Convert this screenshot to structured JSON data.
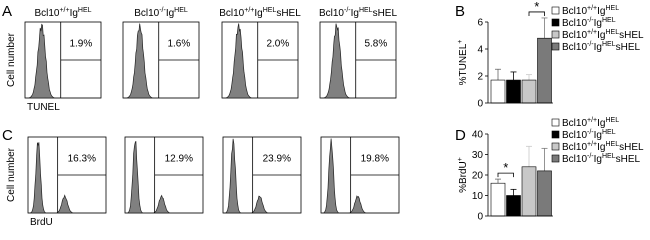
{
  "panel_labels": [
    "A",
    "B",
    "C",
    "D"
  ],
  "flow_rows": [
    {
      "x_label": "TUNEL",
      "y_label": "Cell number",
      "plots": [
        {
          "title": [
            "Bcl10",
            "+/+",
            "Ig",
            "HEL"
          ],
          "gate": "1.9%"
        },
        {
          "title": [
            "Bcl10",
            "-/-",
            "Ig",
            "HEL"
          ],
          "gate": "1.6%"
        },
        {
          "title": [
            "Bcl10",
            "+/+",
            "Ig",
            "HEL",
            "sHEL"
          ],
          "gate": "2.0%"
        },
        {
          "title": [
            "Bcl10",
            "-/-",
            "Ig",
            "HEL",
            "sHEL"
          ],
          "gate": "5.8%"
        }
      ]
    },
    {
      "x_label": "BrdU",
      "y_label": "Cell number",
      "plots": [
        {
          "gate": "16.3%"
        },
        {
          "gate": "12.9%"
        },
        {
          "gate": "23.9%"
        },
        {
          "gate": "19.8%"
        }
      ]
    }
  ],
  "chart_data": [
    {
      "type": "bar",
      "y_label": [
        "%TUNEL",
        "+"
      ],
      "ylim": [
        0,
        6
      ],
      "yticks": [
        0,
        2,
        4,
        6
      ],
      "series": [
        {
          "name": [
            "Bcl10",
            "+/+",
            "Ig",
            "HEL"
          ],
          "color": "#ffffff",
          "values": [
            1.7
          ],
          "errors": [
            0.8
          ]
        },
        {
          "name": [
            "Bcl10",
            "-/-",
            "Ig",
            "HEL"
          ],
          "color": "#000000",
          "values": [
            1.7
          ],
          "errors": [
            0.6
          ]
        },
        {
          "name": [
            "Bcl10",
            "+/+",
            "Ig",
            "HEL",
            "sHEL"
          ],
          "color": "#c8c8c8",
          "values": [
            1.7
          ],
          "errors": [
            0.4
          ]
        },
        {
          "name": [
            "Bcl10",
            "-/-",
            "Ig",
            "HEL",
            "sHEL"
          ],
          "color": "#7a7a7a",
          "values": [
            4.8
          ],
          "errors": [
            1.5
          ]
        }
      ],
      "significance": [
        {
          "between": [
            2,
            3
          ],
          "label": "*"
        }
      ]
    },
    {
      "type": "bar",
      "y_label": [
        "%BrdU",
        "+"
      ],
      "ylim": [
        0,
        40
      ],
      "yticks": [
        0,
        10,
        20,
        30,
        40
      ],
      "series": [
        {
          "name": [
            "Bcl10",
            "+/+",
            "Ig",
            "HEL"
          ],
          "color": "#ffffff",
          "values": [
            16
          ],
          "errors": [
            2
          ]
        },
        {
          "name": [
            "Bcl10",
            "-/-",
            "Ig",
            "HEL"
          ],
          "color": "#000000",
          "values": [
            10
          ],
          "errors": [
            3
          ]
        },
        {
          "name": [
            "Bcl10",
            "+/+",
            "Ig",
            "HEL",
            "sHEL"
          ],
          "color": "#c8c8c8",
          "values": [
            24
          ],
          "errors": [
            10
          ]
        },
        {
          "name": [
            "Bcl10",
            "-/-",
            "Ig",
            "HEL",
            "sHEL"
          ],
          "color": "#7a7a7a",
          "values": [
            22
          ],
          "errors": [
            11
          ]
        }
      ],
      "significance": [
        {
          "between": [
            0,
            1
          ],
          "label": "*"
        }
      ]
    }
  ]
}
